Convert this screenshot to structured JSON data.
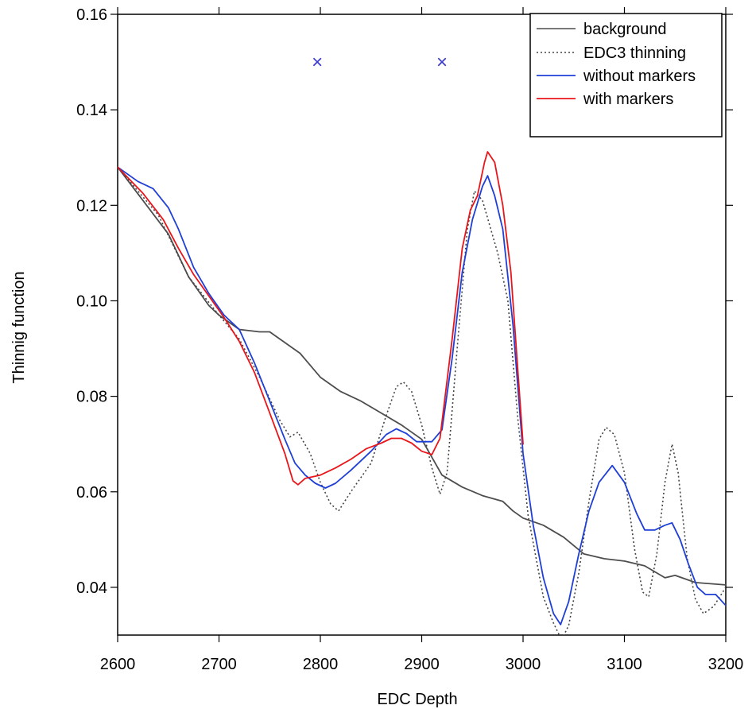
{
  "chart_data": {
    "type": "line",
    "title": "",
    "xlabel": "EDC Depth",
    "ylabel": "Thinnig function",
    "xlim": [
      2600,
      3200
    ],
    "ylim": [
      0.03,
      0.16
    ],
    "x_ticks": [
      2600,
      2700,
      2800,
      2900,
      3000,
      3100,
      3200
    ],
    "x_tick_labels": [
      "2600",
      "2700",
      "2800",
      "2900",
      "3000",
      "3100",
      "3200"
    ],
    "y_ticks": [
      0.04,
      0.06,
      0.08,
      0.1,
      0.12,
      0.14,
      0.16
    ],
    "y_tick_labels": [
      "0.04",
      "0.06",
      "0.08",
      "0.10",
      "0.12",
      "0.14",
      "0.16"
    ],
    "grid": false,
    "legend_position": "top-right",
    "series": [
      {
        "name": "background",
        "color": "#4d4d4d",
        "dash": "solid",
        "points": [
          [
            2600,
            0.128
          ],
          [
            2625,
            0.121
          ],
          [
            2650,
            0.114
          ],
          [
            2670,
            0.105
          ],
          [
            2690,
            0.099
          ],
          [
            2700,
            0.097
          ],
          [
            2720,
            0.094
          ],
          [
            2740,
            0.0935
          ],
          [
            2750,
            0.0935
          ],
          [
            2760,
            0.092
          ],
          [
            2780,
            0.089
          ],
          [
            2800,
            0.084
          ],
          [
            2820,
            0.081
          ],
          [
            2840,
            0.079
          ],
          [
            2860,
            0.0765
          ],
          [
            2880,
            0.074
          ],
          [
            2900,
            0.071
          ],
          [
            2920,
            0.0635
          ],
          [
            2940,
            0.061
          ],
          [
            2960,
            0.0592
          ],
          [
            2980,
            0.058
          ],
          [
            2990,
            0.056
          ],
          [
            3000,
            0.0545
          ],
          [
            3020,
            0.053
          ],
          [
            3040,
            0.0505
          ],
          [
            3060,
            0.047
          ],
          [
            3080,
            0.046
          ],
          [
            3100,
            0.0455
          ],
          [
            3120,
            0.0445
          ],
          [
            3140,
            0.042
          ],
          [
            3150,
            0.0425
          ],
          [
            3170,
            0.041
          ],
          [
            3200,
            0.0405
          ]
        ]
      },
      {
        "name": "EDC3 thinning",
        "color": "#444444",
        "dash": "dotted",
        "points": [
          [
            2600,
            0.128
          ],
          [
            2640,
            0.118
          ],
          [
            2670,
            0.105
          ],
          [
            2700,
            0.097
          ],
          [
            2720,
            0.092
          ],
          [
            2740,
            0.084
          ],
          [
            2760,
            0.075
          ],
          [
            2770,
            0.0715
          ],
          [
            2778,
            0.0725
          ],
          [
            2790,
            0.068
          ],
          [
            2800,
            0.062
          ],
          [
            2810,
            0.0575
          ],
          [
            2818,
            0.056
          ],
          [
            2830,
            0.06
          ],
          [
            2850,
            0.066
          ],
          [
            2865,
            0.076
          ],
          [
            2875,
            0.082
          ],
          [
            2882,
            0.083
          ],
          [
            2890,
            0.081
          ],
          [
            2900,
            0.074
          ],
          [
            2910,
            0.065
          ],
          [
            2918,
            0.0595
          ],
          [
            2925,
            0.064
          ],
          [
            2935,
            0.09
          ],
          [
            2945,
            0.115
          ],
          [
            2952,
            0.123
          ],
          [
            2960,
            0.121
          ],
          [
            2975,
            0.11
          ],
          [
            2985,
            0.1
          ],
          [
            2995,
            0.075
          ],
          [
            3005,
            0.055
          ],
          [
            3020,
            0.038
          ],
          [
            3030,
            0.0325
          ],
          [
            3038,
            0.029
          ],
          [
            3045,
            0.032
          ],
          [
            3055,
            0.043
          ],
          [
            3065,
            0.058
          ],
          [
            3075,
            0.071
          ],
          [
            3082,
            0.0735
          ],
          [
            3090,
            0.072
          ],
          [
            3100,
            0.064
          ],
          [
            3110,
            0.048
          ],
          [
            3118,
            0.039
          ],
          [
            3124,
            0.038
          ],
          [
            3132,
            0.047
          ],
          [
            3140,
            0.062
          ],
          [
            3147,
            0.07
          ],
          [
            3153,
            0.064
          ],
          [
            3162,
            0.046
          ],
          [
            3170,
            0.0375
          ],
          [
            3178,
            0.0345
          ],
          [
            3188,
            0.036
          ],
          [
            3200,
            0.04
          ]
        ]
      },
      {
        "name": "without markers",
        "color": "#1f3fd6",
        "dash": "solid",
        "points": [
          [
            2600,
            0.128
          ],
          [
            2620,
            0.125
          ],
          [
            2635,
            0.1235
          ],
          [
            2650,
            0.1195
          ],
          [
            2660,
            0.115
          ],
          [
            2675,
            0.107
          ],
          [
            2690,
            0.1015
          ],
          [
            2705,
            0.097
          ],
          [
            2720,
            0.094
          ],
          [
            2735,
            0.087
          ],
          [
            2750,
            0.079
          ],
          [
            2765,
            0.071
          ],
          [
            2775,
            0.066
          ],
          [
            2785,
            0.0635
          ],
          [
            2795,
            0.0618
          ],
          [
            2805,
            0.0608
          ],
          [
            2815,
            0.0618
          ],
          [
            2830,
            0.0645
          ],
          [
            2850,
            0.0685
          ],
          [
            2865,
            0.072
          ],
          [
            2875,
            0.0732
          ],
          [
            2885,
            0.0722
          ],
          [
            2895,
            0.0705
          ],
          [
            2910,
            0.0705
          ],
          [
            2920,
            0.073
          ],
          [
            2930,
            0.088
          ],
          [
            2940,
            0.106
          ],
          [
            2950,
            0.117
          ],
          [
            2960,
            0.124
          ],
          [
            2965,
            0.1262
          ],
          [
            2972,
            0.122
          ],
          [
            2980,
            0.115
          ],
          [
            2990,
            0.095
          ],
          [
            3000,
            0.068
          ],
          [
            3010,
            0.053
          ],
          [
            3020,
            0.042
          ],
          [
            3030,
            0.0345
          ],
          [
            3037,
            0.0322
          ],
          [
            3045,
            0.037
          ],
          [
            3055,
            0.047
          ],
          [
            3065,
            0.056
          ],
          [
            3075,
            0.062
          ],
          [
            3088,
            0.0655
          ],
          [
            3100,
            0.062
          ],
          [
            3112,
            0.0555
          ],
          [
            3120,
            0.052
          ],
          [
            3130,
            0.052
          ],
          [
            3140,
            0.053
          ],
          [
            3147,
            0.0535
          ],
          [
            3155,
            0.05
          ],
          [
            3163,
            0.045
          ],
          [
            3172,
            0.04
          ],
          [
            3180,
            0.0385
          ],
          [
            3190,
            0.0385
          ],
          [
            3200,
            0.0362
          ]
        ]
      },
      {
        "name": "with markers",
        "color": "#e8161b",
        "dash": "solid",
        "points": [
          [
            2600,
            0.128
          ],
          [
            2625,
            0.1225
          ],
          [
            2645,
            0.117
          ],
          [
            2660,
            0.111
          ],
          [
            2675,
            0.1055
          ],
          [
            2690,
            0.101
          ],
          [
            2705,
            0.0965
          ],
          [
            2720,
            0.0915
          ],
          [
            2735,
            0.085
          ],
          [
            2750,
            0.0765
          ],
          [
            2765,
            0.068
          ],
          [
            2773,
            0.0623
          ],
          [
            2778,
            0.0615
          ],
          [
            2785,
            0.0628
          ],
          [
            2800,
            0.0635
          ],
          [
            2815,
            0.065
          ],
          [
            2830,
            0.0668
          ],
          [
            2845,
            0.069
          ],
          [
            2860,
            0.0702
          ],
          [
            2870,
            0.0712
          ],
          [
            2880,
            0.0712
          ],
          [
            2890,
            0.0702
          ],
          [
            2900,
            0.0685
          ],
          [
            2910,
            0.0678
          ],
          [
            2918,
            0.0712
          ],
          [
            2930,
            0.092
          ],
          [
            2940,
            0.111
          ],
          [
            2948,
            0.119
          ],
          [
            2955,
            0.122
          ],
          [
            2962,
            0.129
          ],
          [
            2965,
            0.1312
          ],
          [
            2972,
            0.129
          ],
          [
            2980,
            0.12
          ],
          [
            2988,
            0.106
          ],
          [
            2995,
            0.085
          ],
          [
            3000,
            0.07
          ]
        ]
      }
    ],
    "markers": {
      "symbol": "×",
      "color": "#3a3acc",
      "points": [
        [
          2797,
          0.15
        ],
        [
          2920,
          0.15
        ]
      ]
    }
  }
}
